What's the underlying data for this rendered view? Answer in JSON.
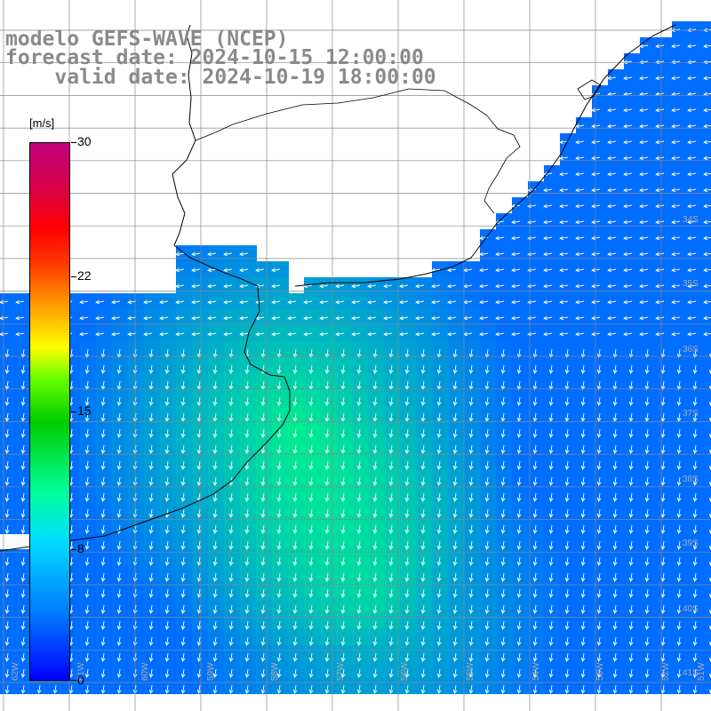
{
  "title": {
    "line1": "modelo GEFS-WAVE (NCEP)",
    "line2": "forecast date: 2024-10-15 12:00:00",
    "line3": "    valid date: 2024-10-19 18:00:00"
  },
  "colorbar": {
    "unit": "[m/s]",
    "ticks": [
      "0",
      "8",
      "15",
      "22",
      "30"
    ]
  },
  "map": {
    "lat_labels": [
      "34S",
      "35S",
      "36S",
      "37S",
      "38S",
      "39S",
      "40S",
      "41S"
    ],
    "lon_labels": [
      "62W",
      "61W",
      "60W",
      "59W",
      "58W",
      "57W",
      "56W",
      "55W",
      "54W",
      "53W",
      "52W",
      "51W"
    ]
  },
  "colors": {
    "land": "#ffffff",
    "coastline": "#000000",
    "grid": "#888888",
    "arrow": "#ffffff",
    "title": "#8a8a8a"
  }
}
